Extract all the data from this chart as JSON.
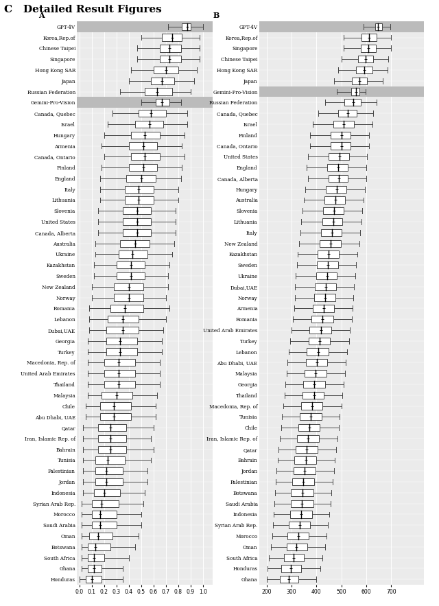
{
  "title": "C   Detailed Result Figures",
  "panel_a_label": "A",
  "panel_b_label": "B",
  "panel_a_xlim": [
    -0.02,
    1.08
  ],
  "panel_b_xlim": [
    170,
    830
  ],
  "panel_a_xticks": [
    0.0,
    0.1,
    0.2,
    0.3,
    0.4,
    0.5,
    0.6,
    0.7,
    0.8,
    0.9,
    1.0
  ],
  "panel_b_xticks": [
    200,
    300,
    400,
    500,
    600,
    700
  ],
  "countries_a": [
    "GPT-4V",
    "Korea,Rep.of",
    "Chinese Taipei",
    "Singapore",
    "Hong Kong SAR",
    "Japan",
    "Russian Federation",
    "Gemini-Pro-Vision",
    "Canada, Quebec",
    "Israel",
    "Hungary",
    "Armenia",
    "Canada, Ontario",
    "Finland",
    "England",
    "Italy",
    "Lithuania",
    "Slovenia",
    "United States",
    "Canada, Alberta",
    "Australia",
    "Ukraine",
    "Kazakhstan",
    "Sweden",
    "New Zealand",
    "Norway",
    "Romania",
    "Lebanon",
    "Dubai,UAE",
    "Georgia",
    "Turkey",
    "Macedonia, Rep. of",
    "United Arab Emirates",
    "Thailand",
    "Malaysia",
    "Chile",
    "Abu Dhabi, UAE",
    "Qatar",
    "Iran, Islamic Rep. of",
    "Bahrain",
    "Tunisia",
    "Palestinian",
    "Jordan",
    "Indonesia",
    "Syrian Arab Rep.",
    "Morocco",
    "Saudi Arabia",
    "Oman",
    "Botswana",
    "South Africa",
    "Ghana",
    "Honduras"
  ],
  "countries_b": [
    "GPT-4V",
    "Korea,Rep.of",
    "Singapore",
    "Chinese Taipei",
    "Hong Kong SAR",
    "Japan",
    "Gemini-Pro-Vision",
    "Russian Federation",
    "Canada, Quebec",
    "Israel",
    "Finland",
    "Canada, Ontario",
    "United States",
    "England",
    "Canada, Alberta",
    "Hungary",
    "Australia",
    "Slovenia",
    "Lithuania",
    "Italy",
    "New Zealand",
    "Kazakhstan",
    "Sweden",
    "Ukraine",
    "Dubai,UAE",
    "Norway",
    "Armenia",
    "Romania",
    "United Arab Emirates",
    "Turkey",
    "Lebanon",
    "Abu Dhabi, UAE",
    "Malaysia",
    "Georgia",
    "Thailand",
    "Macedonia, Rep. of",
    "Tunisia",
    "Chile",
    "Iran, Islamic Rep. of",
    "Qatar",
    "Bahrain",
    "Jordan",
    "Palestinian",
    "Botswana",
    "Saudi Arabia",
    "Indonesia",
    "Syrian Arab Rep.",
    "Morocco",
    "Oman",
    "South Africa",
    "Honduras",
    "Ghana"
  ],
  "boxes_a": {
    "GPT-4V": [
      0.72,
      0.83,
      0.87,
      0.9,
      1.0
    ],
    "Korea,Rep.of": [
      0.5,
      0.67,
      0.75,
      0.83,
      0.97
    ],
    "Chinese Taipei": [
      0.47,
      0.65,
      0.73,
      0.82,
      0.97
    ],
    "Singapore": [
      0.47,
      0.65,
      0.73,
      0.82,
      0.97
    ],
    "Hong Kong SAR": [
      0.42,
      0.6,
      0.7,
      0.8,
      0.95
    ],
    "Japan": [
      0.4,
      0.58,
      0.67,
      0.77,
      0.93
    ],
    "Russian Federation": [
      0.33,
      0.53,
      0.63,
      0.75,
      0.9
    ],
    "Gemini-Pro-Vision": [
      0.5,
      0.62,
      0.67,
      0.73,
      0.82
    ],
    "Canada, Quebec": [
      0.27,
      0.48,
      0.58,
      0.7,
      0.87
    ],
    "Israel": [
      0.23,
      0.45,
      0.57,
      0.68,
      0.87
    ],
    "Hungary": [
      0.2,
      0.42,
      0.53,
      0.65,
      0.85
    ],
    "Armenia": [
      0.18,
      0.4,
      0.52,
      0.63,
      0.83
    ],
    "Canada, Ontario": [
      0.2,
      0.42,
      0.53,
      0.65,
      0.85
    ],
    "Finland": [
      0.18,
      0.4,
      0.52,
      0.63,
      0.83
    ],
    "England": [
      0.17,
      0.38,
      0.5,
      0.62,
      0.82
    ],
    "Italy": [
      0.17,
      0.37,
      0.48,
      0.6,
      0.8
    ],
    "Lithuania": [
      0.17,
      0.37,
      0.48,
      0.6,
      0.8
    ],
    "Slovenia": [
      0.15,
      0.35,
      0.47,
      0.58,
      0.78
    ],
    "United States": [
      0.15,
      0.35,
      0.47,
      0.58,
      0.78
    ],
    "Canada, Alberta": [
      0.15,
      0.35,
      0.47,
      0.58,
      0.78
    ],
    "Australia": [
      0.13,
      0.33,
      0.45,
      0.57,
      0.77
    ],
    "Ukraine": [
      0.13,
      0.32,
      0.43,
      0.55,
      0.75
    ],
    "Kazakhstan": [
      0.12,
      0.3,
      0.42,
      0.53,
      0.73
    ],
    "Sweden": [
      0.12,
      0.3,
      0.42,
      0.53,
      0.72
    ],
    "New Zealand": [
      0.1,
      0.28,
      0.4,
      0.52,
      0.72
    ],
    "Norway": [
      0.1,
      0.28,
      0.4,
      0.52,
      0.7
    ],
    "Romania": [
      0.08,
      0.25,
      0.37,
      0.52,
      0.73
    ],
    "Lebanon": [
      0.08,
      0.23,
      0.35,
      0.48,
      0.7
    ],
    "Dubai,UAE": [
      0.08,
      0.22,
      0.35,
      0.48,
      0.68
    ],
    "Georgia": [
      0.07,
      0.22,
      0.33,
      0.47,
      0.67
    ],
    "Turkey": [
      0.07,
      0.22,
      0.33,
      0.47,
      0.67
    ],
    "Macedonia, Rep. of": [
      0.07,
      0.2,
      0.32,
      0.45,
      0.65
    ],
    "United Arab Emirates": [
      0.07,
      0.2,
      0.32,
      0.45,
      0.65
    ],
    "Thailand": [
      0.07,
      0.2,
      0.32,
      0.45,
      0.65
    ],
    "Malaysia": [
      0.07,
      0.18,
      0.3,
      0.43,
      0.63
    ],
    "Chile": [
      0.05,
      0.17,
      0.28,
      0.42,
      0.62
    ],
    "Abu Dhabi, UAE": [
      0.05,
      0.17,
      0.28,
      0.42,
      0.62
    ],
    "Qatar": [
      0.03,
      0.15,
      0.25,
      0.38,
      0.6
    ],
    "Iran, Islamic Rep. of": [
      0.03,
      0.15,
      0.25,
      0.38,
      0.58
    ],
    "Bahrain": [
      0.03,
      0.15,
      0.25,
      0.38,
      0.6
    ],
    "Tunisia": [
      0.03,
      0.13,
      0.23,
      0.37,
      0.58
    ],
    "Palestinian": [
      0.03,
      0.13,
      0.22,
      0.35,
      0.55
    ],
    "Jordan": [
      0.03,
      0.13,
      0.22,
      0.35,
      0.55
    ],
    "Indonesia": [
      0.03,
      0.12,
      0.2,
      0.33,
      0.53
    ],
    "Syrian Arab Rep.": [
      0.02,
      0.1,
      0.18,
      0.32,
      0.52
    ],
    "Morocco": [
      0.02,
      0.1,
      0.17,
      0.3,
      0.5
    ],
    "Saudi Arabia": [
      0.02,
      0.1,
      0.17,
      0.3,
      0.5
    ],
    "Oman": [
      0.02,
      0.08,
      0.15,
      0.27,
      0.48
    ],
    "Botswana": [
      0.02,
      0.07,
      0.13,
      0.25,
      0.45
    ],
    "South Africa": [
      0.02,
      0.07,
      0.12,
      0.2,
      0.4
    ],
    "Ghana": [
      0.02,
      0.07,
      0.12,
      0.18,
      0.35
    ],
    "Honduras": [
      0.0,
      0.05,
      0.1,
      0.18,
      0.35
    ]
  },
  "boxes_b": {
    "GPT-4V": [
      590,
      635,
      648,
      662,
      695
    ],
    "Korea,Rep.of": [
      510,
      580,
      610,
      640,
      700
    ],
    "Singapore": [
      510,
      578,
      608,
      638,
      698
    ],
    "Chinese Taipei": [
      500,
      568,
      598,
      628,
      688
    ],
    "Hong Kong SAR": [
      488,
      558,
      592,
      625,
      685
    ],
    "Japan": [
      472,
      542,
      573,
      603,
      665
    ],
    "Gemini-Pro-Vision": [
      482,
      540,
      558,
      572,
      598
    ],
    "Russian Federation": [
      435,
      512,
      547,
      577,
      640
    ],
    "Canada, Quebec": [
      408,
      488,
      525,
      562,
      628
    ],
    "Israel": [
      385,
      468,
      510,
      550,
      625
    ],
    "Finland": [
      375,
      458,
      500,
      538,
      612
    ],
    "Canada, Ontario": [
      375,
      458,
      500,
      538,
      610
    ],
    "United States": [
      365,
      448,
      492,
      530,
      602
    ],
    "England": [
      360,
      443,
      487,
      525,
      600
    ],
    "Canada, Alberta": [
      365,
      448,
      490,
      527,
      600
    ],
    "Hungary": [
      355,
      438,
      482,
      520,
      595
    ],
    "Australia": [
      350,
      432,
      477,
      515,
      588
    ],
    "Slovenia": [
      345,
      428,
      472,
      510,
      584
    ],
    "Lithuania": [
      340,
      423,
      468,
      505,
      580
    ],
    "Italy": [
      335,
      418,
      462,
      500,
      576
    ],
    "New Zealand": [
      330,
      413,
      457,
      497,
      572
    ],
    "Kazakhstan": [
      325,
      406,
      450,
      490,
      565
    ],
    "Sweden": [
      322,
      403,
      447,
      487,
      560
    ],
    "Ukraine": [
      318,
      398,
      442,
      483,
      557
    ],
    "Dubai,UAE": [
      315,
      393,
      437,
      478,
      550
    ],
    "Norway": [
      315,
      390,
      435,
      475,
      547
    ],
    "Armenia": [
      310,
      385,
      430,
      470,
      544
    ],
    "Romania": [
      305,
      380,
      425,
      467,
      542
    ],
    "United Arab Emirates": [
      300,
      373,
      418,
      460,
      534
    ],
    "Turkey": [
      295,
      368,
      412,
      454,
      530
    ],
    "Lebanon": [
      290,
      362,
      407,
      450,
      524
    ],
    "Abu Dhabi, UAE": [
      285,
      357,
      402,
      444,
      518
    ],
    "Malaysia": [
      280,
      352,
      397,
      440,
      514
    ],
    "Georgia": [
      275,
      347,
      392,
      435,
      509
    ],
    "Thailand": [
      272,
      345,
      390,
      430,
      504
    ],
    "Macedonia, Rep. of": [
      268,
      338,
      383,
      425,
      500
    ],
    "Tunisia": [
      262,
      332,
      377,
      420,
      494
    ],
    "Chile": [
      258,
      327,
      372,
      414,
      490
    ],
    "Iran, Islamic Rep. of": [
      253,
      322,
      367,
      410,
      485
    ],
    "Qatar": [
      248,
      317,
      362,
      405,
      480
    ],
    "Bahrain": [
      245,
      312,
      357,
      400,
      474
    ],
    "Jordan": [
      240,
      308,
      353,
      396,
      470
    ],
    "Palestinian": [
      237,
      303,
      348,
      392,
      466
    ],
    "Botswana": [
      233,
      298,
      343,
      387,
      460
    ],
    "Saudi Arabia": [
      232,
      297,
      342,
      387,
      457
    ],
    "Indonesia": [
      230,
      295,
      338,
      382,
      452
    ],
    "Syrian Arab Rep.": [
      227,
      290,
      333,
      375,
      445
    ],
    "Morocco": [
      222,
      285,
      327,
      370,
      440
    ],
    "Oman": [
      218,
      280,
      320,
      363,
      436
    ],
    "South Africa": [
      210,
      270,
      308,
      350,
      425
    ],
    "Honduras": [
      203,
      260,
      297,
      340,
      415
    ],
    "Ghana": [
      200,
      253,
      290,
      328,
      400
    ]
  },
  "highlight_rows_a": [
    "GPT-4V",
    "Gemini-Pro-Vision"
  ],
  "highlight_rows_b": [
    "GPT-4V",
    "Gemini-Pro-Vision"
  ],
  "background_color": "#ebebeb",
  "box_color": "white",
  "box_edgecolor": "#444444",
  "median_color": "black",
  "whisker_color": "#444444",
  "highlight_bg": "#bbbbbb"
}
